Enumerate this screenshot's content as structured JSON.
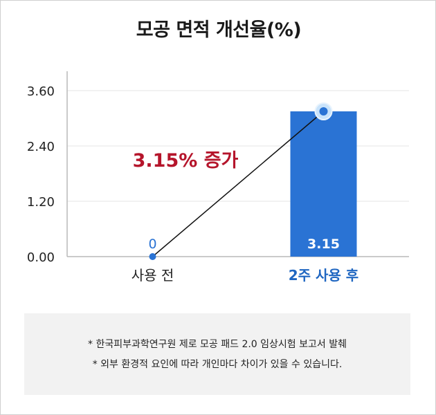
{
  "chart_data": {
    "type": "bar",
    "title": "모공 면적 개선율(%)",
    "categories": [
      "사용 전",
      "2주 사용 후"
    ],
    "values": [
      0,
      3.15
    ],
    "data_labels": [
      "0",
      "3.15"
    ],
    "ylim": [
      0,
      3.6
    ],
    "yticks": [
      "0.00",
      "1.20",
      "2.40",
      "3.60"
    ],
    "grid": true,
    "annotation": "3.15% 증가",
    "colors": {
      "bar": "#2a73d4",
      "point": "#2a73d4",
      "highlight_label": "#1f66c1",
      "annotation": "#b5152b",
      "line": "#111111"
    }
  },
  "notes": [
    "* 한국피부과학연구원 제로 모공 패드 2.0 임상시험 보고서 발췌",
    "* 외부 환경적 요인에 따라 개인마다 차이가 있을 수 있습니다."
  ]
}
